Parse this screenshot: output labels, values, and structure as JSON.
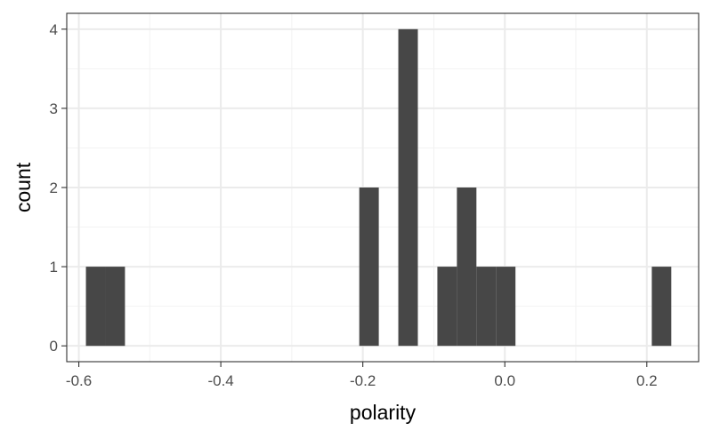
{
  "chart_data": {
    "type": "bar",
    "subtype": "histogram",
    "title": "",
    "xlabel": "polarity",
    "ylabel": "count",
    "xlim": [
      -0.617,
      0.273
    ],
    "ylim": [
      -0.2,
      4.2
    ],
    "xticks": [
      -0.6,
      -0.4,
      -0.2,
      0.0,
      0.2
    ],
    "xtick_labels": [
      "-0.6",
      "-0.4",
      "-0.2",
      "0.0",
      "0.2"
    ],
    "yticks": [
      0,
      1,
      2,
      3,
      4
    ],
    "ytick_labels": [
      "0",
      "1",
      "2",
      "3",
      "4"
    ],
    "bin_width": 0.0275,
    "bins": [
      {
        "x0": -0.59,
        "x1": -0.5625,
        "count": 1
      },
      {
        "x0": -0.5625,
        "x1": -0.535,
        "count": 1
      },
      {
        "x0": -0.205,
        "x1": -0.1775,
        "count": 2
      },
      {
        "x0": -0.15,
        "x1": -0.1225,
        "count": 4
      },
      {
        "x0": -0.095,
        "x1": -0.0675,
        "count": 1
      },
      {
        "x0": -0.0675,
        "x1": -0.04,
        "count": 2
      },
      {
        "x0": -0.04,
        "x1": -0.0125,
        "count": 1
      },
      {
        "x0": -0.0125,
        "x1": 0.015,
        "count": 1
      },
      {
        "x0": 0.207,
        "x1": 0.2345,
        "count": 1
      }
    ],
    "grid": true,
    "theme": "bw",
    "colors": {
      "bar": "#474747",
      "grid_major": "#ebebeb",
      "grid_minor": "#f2f2f2",
      "panel_border": "#333333",
      "tick_text": "#4d4d4d",
      "title_text": "#000000"
    }
  }
}
